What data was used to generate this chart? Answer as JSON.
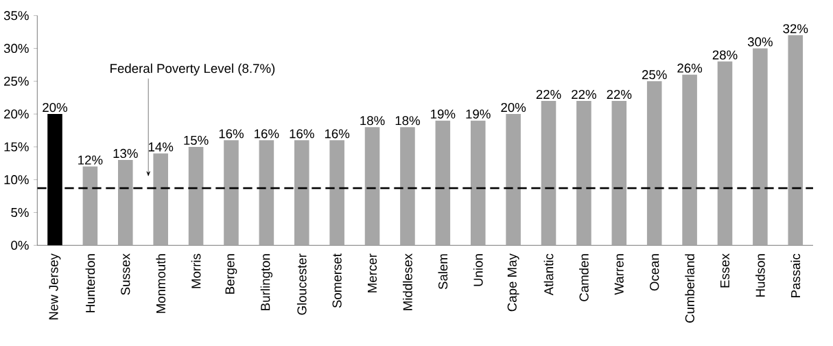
{
  "chart_data": {
    "type": "bar",
    "categories": [
      "New Jersey",
      "Hunterdon",
      "Sussex",
      "Monmouth",
      "Morris",
      "Bergen",
      "Burlington",
      "Gloucester",
      "Somerset",
      "Mercer",
      "Middlesex",
      "Salem",
      "Union",
      "Cape May",
      "Atlantic",
      "Camden",
      "Warren",
      "Ocean",
      "Cumberland",
      "Essex",
      "Hudson",
      "Passaic"
    ],
    "values": [
      20,
      12,
      13,
      14,
      15,
      16,
      16,
      16,
      16,
      18,
      18,
      19,
      19,
      20,
      22,
      22,
      22,
      25,
      26,
      28,
      30,
      32
    ],
    "value_labels": [
      "20%",
      "12%",
      "13%",
      "14%",
      "15%",
      "16%",
      "16%",
      "16%",
      "16%",
      "18%",
      "18%",
      "19%",
      "19%",
      "20%",
      "22%",
      "22%",
      "22%",
      "25%",
      "26%",
      "28%",
      "30%",
      "32%"
    ],
    "colors": [
      "#000000",
      "#a6a6a6",
      "#a6a6a6",
      "#a6a6a6",
      "#a6a6a6",
      "#a6a6a6",
      "#a6a6a6",
      "#a6a6a6",
      "#a6a6a6",
      "#a6a6a6",
      "#a6a6a6",
      "#a6a6a6",
      "#a6a6a6",
      "#a6a6a6",
      "#a6a6a6",
      "#a6a6a6",
      "#a6a6a6",
      "#a6a6a6",
      "#a6a6a6",
      "#a6a6a6",
      "#a6a6a6",
      "#a6a6a6"
    ],
    "ylim": [
      0,
      35
    ],
    "yticks": [
      {
        "value": 0,
        "label": "0%"
      },
      {
        "value": 5,
        "label": "5%"
      },
      {
        "value": 10,
        "label": "10%"
      },
      {
        "value": 15,
        "label": "15%"
      },
      {
        "value": 20,
        "label": "20%"
      },
      {
        "value": 25,
        "label": "25%"
      },
      {
        "value": 30,
        "label": "30%"
      },
      {
        "value": 35,
        "label": "35%"
      }
    ],
    "ref_lines": [
      {
        "axis": "y",
        "value": 8.7,
        "label": "Federal Poverty Level (8.7%)",
        "color": "#000000",
        "line_style": "dashed"
      }
    ],
    "grid": false
  }
}
